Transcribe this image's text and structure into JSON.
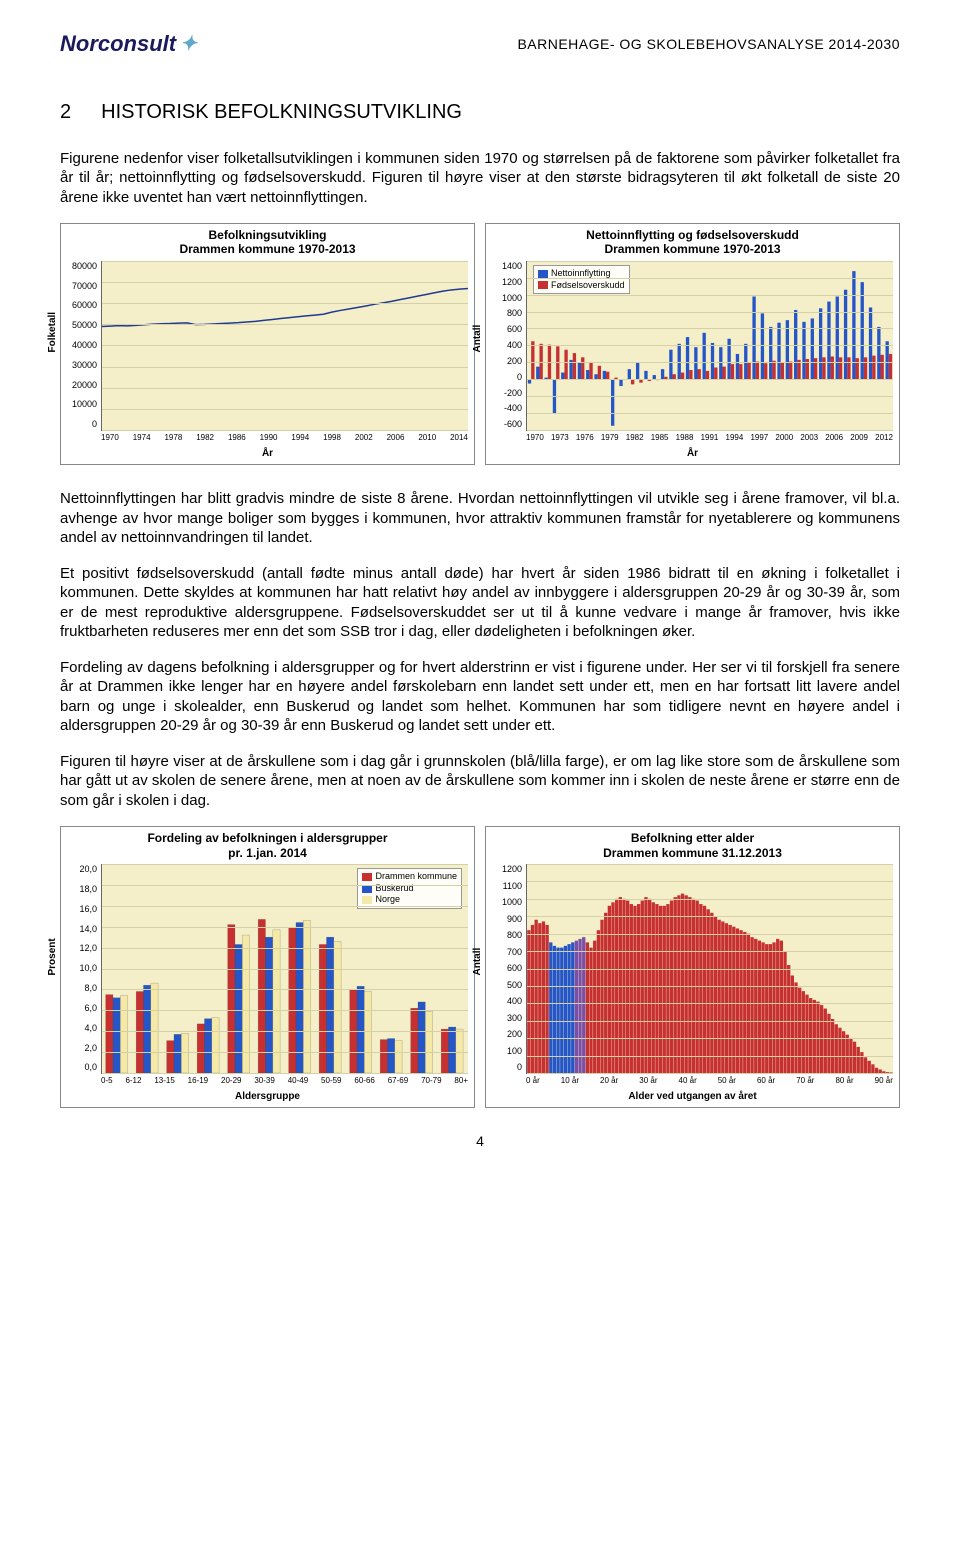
{
  "header": {
    "logo_text": "Norconsult",
    "doc_title": "BARNEHAGE- OG SKOLEBEHOVSANALYSE  2014-2030"
  },
  "section": {
    "number": "2",
    "title": "HISTORISK BEFOLKNINGSUTVIKLING"
  },
  "paragraphs": {
    "p1": "Figurene nedenfor viser folketallsutviklingen i kommunen siden 1970 og størrelsen på de faktorene som påvirker folketallet fra år til år; nettoinnflytting og fødselsoverskudd. Figuren til høyre viser at den største bidragsyteren til økt folketall de siste 20 årene ikke uventet han vært nettoinnflyttingen.",
    "p2": "Nettoinnflyttingen har blitt gradvis mindre de siste 8 årene. Hvordan nettoinnflyttingen vil utvikle seg i årene framover, vil bl.a. avhenge av hvor mange boliger som bygges i kommunen, hvor attraktiv kommunen framstår for nyetablerere og kommunens andel av nettoinnvandringen til landet.",
    "p3": "Et positivt fødselsoverskudd (antall fødte minus antall døde) har hvert år siden 1986 bidratt til en økning i folketallet i kommunen. Dette skyldes at kommunen har hatt relativt høy andel av innbyggere i aldersgruppen 20-29 år og 30-39 år, som er de mest reproduktive aldersgruppene. Fødselsoverskuddet ser ut til å kunne vedvare i mange år framover, hvis ikke fruktbarheten reduseres mer enn det som SSB tror i dag, eller dødeligheten i befolkningen øker.",
    "p4": "Fordeling av dagens befolkning i aldersgrupper og for hvert alderstrinn er vist i figurene under. Her ser vi til forskjell fra senere år at Drammen ikke lenger har en høyere andel førskolebarn enn landet sett under ett, men en har fortsatt litt lavere andel barn og unge i skolealder, enn Buskerud og landet som helhet. Kommunen har som tidligere nevnt en høyere andel i aldersgruppen 20-29 år og 30-39 år enn Buskerud og landet sett under ett.",
    "p5": "Figuren til høyre viser at de årskullene som i dag går i grunnskolen (blå/lilla farge), er om lag like store som de årskullene som har gått ut av skolen de senere årene, men at noen av de årskullene som kommer inn i skolen de neste årene er større enn de som går i skolen i dag."
  },
  "chart1": {
    "type": "line",
    "title": "Befolkningsutvikling\nDrammen kommune 1970-2013",
    "ylabel": "Folketall",
    "xlabel": "År",
    "ylim": [
      0,
      80000
    ],
    "ytick_step": 10000,
    "yticks": [
      "0",
      "10000",
      "20000",
      "30000",
      "40000",
      "50000",
      "60000",
      "70000",
      "80000"
    ],
    "xticks": [
      "1970",
      "1974",
      "1978",
      "1982",
      "1986",
      "1990",
      "1994",
      "1998",
      "2002",
      "2006",
      "2010",
      "2014"
    ],
    "line_color": "#1f3a93",
    "line_width": 1.5,
    "background_color": "#f4efc8",
    "grid_color": "#d4d0a8",
    "data": [
      49000,
      49200,
      49400,
      49300,
      49500,
      49800,
      50100,
      50300,
      50400,
      50600,
      50700,
      49900,
      50000,
      50200,
      50400,
      50600,
      50800,
      51100,
      51400,
      51900,
      52300,
      52800,
      53200,
      53600,
      54000,
      54400,
      54800,
      55800,
      56600,
      57300,
      58000,
      58700,
      59500,
      60200,
      60900,
      61700,
      62500,
      63300,
      64100,
      64900,
      65700,
      66300,
      66700,
      67000
    ]
  },
  "chart2": {
    "type": "bar-dual",
    "title": "Nettoinnflytting og fødselsoverskudd\nDrammen kommune 1970-2013",
    "ylabel": "Antall",
    "xlabel": "År",
    "ylim": [
      -600,
      1400
    ],
    "ytick_step": 200,
    "yticks": [
      "-600",
      "-400",
      "-200",
      "0",
      "200",
      "400",
      "600",
      "800",
      "1000",
      "1200",
      "1400"
    ],
    "xticks": [
      "1970",
      "1973",
      "1976",
      "1979",
      "1982",
      "1985",
      "1988",
      "1991",
      "1994",
      "1997",
      "2000",
      "2003",
      "2006",
      "2009",
      "2012"
    ],
    "legend": [
      {
        "label": "Nettoinnflytting",
        "color": "#2456c7"
      },
      {
        "label": "Fødselsoverskudd",
        "color": "#c73030"
      }
    ],
    "background_color": "#f4efc8",
    "grid_color": "#d4d0a8",
    "netto": [
      -50,
      150,
      20,
      -400,
      80,
      230,
      200,
      110,
      60,
      100,
      -550,
      -80,
      120,
      200,
      100,
      50,
      120,
      350,
      420,
      500,
      380,
      550,
      430,
      380,
      480,
      300,
      420,
      980,
      780,
      620,
      670,
      700,
      820,
      680,
      720,
      840,
      920,
      980,
      1060,
      1280,
      1150,
      850,
      620,
      450
    ],
    "fodsel": [
      450,
      420,
      410,
      390,
      350,
      310,
      260,
      200,
      160,
      90,
      20,
      0,
      -60,
      -40,
      -20,
      -10,
      30,
      60,
      80,
      110,
      120,
      100,
      140,
      150,
      180,
      180,
      200,
      210,
      190,
      220,
      200,
      210,
      230,
      240,
      250,
      260,
      270,
      260,
      260,
      250,
      260,
      280,
      290,
      300
    ]
  },
  "chart3": {
    "type": "grouped-bar",
    "title": "Fordeling av befolkningen i aldersgrupper\npr. 1.jan. 2014",
    "ylabel": "Prosent",
    "xlabel": "Aldersgruppe",
    "ylim": [
      0,
      20
    ],
    "ytick_step": 2,
    "yticks": [
      "0,0",
      "2,0",
      "4,0",
      "6,0",
      "8,0",
      "10,0",
      "12,0",
      "14,0",
      "16,0",
      "18,0",
      "20,0"
    ],
    "categories": [
      "0-5",
      "6-12",
      "13-15",
      "16-19",
      "20-29",
      "30-39",
      "40-49",
      "50-59",
      "60-66",
      "67-69",
      "70-79",
      "80+"
    ],
    "legend": [
      {
        "label": "Drammen kommune",
        "color": "#c73030"
      },
      {
        "label": "Buskerud",
        "color": "#2456c7"
      },
      {
        "label": "Norge",
        "color": "#f5e9a8"
      }
    ],
    "background_color": "#f4efc8",
    "grid_color": "#d4d0a8",
    "series": {
      "drammen": [
        7.5,
        7.8,
        3.1,
        4.7,
        14.2,
        14.7,
        13.9,
        12.3,
        8.0,
        3.2,
        6.2,
        4.2
      ],
      "buskerud": [
        7.2,
        8.4,
        3.7,
        5.2,
        12.3,
        13.0,
        14.4,
        13.0,
        8.3,
        3.3,
        6.8,
        4.4
      ],
      "norge": [
        7.4,
        8.6,
        3.8,
        5.3,
        13.2,
        13.7,
        14.6,
        12.6,
        7.8,
        3.1,
        5.9,
        4.2
      ]
    }
  },
  "chart4": {
    "type": "bar-age-dist",
    "title": "Befolkning etter alder\nDrammen kommune 31.12.2013",
    "ylabel": "Antall",
    "xlabel": "Alder ved utgangen av året",
    "ylim": [
      0,
      1200
    ],
    "ytick_step": 100,
    "yticks": [
      "0",
      "100",
      "200",
      "300",
      "400",
      "500",
      "600",
      "700",
      "800",
      "900",
      "1000",
      "1100",
      "1200"
    ],
    "xticks": [
      "0 år",
      "10 år",
      "20 år",
      "30 år",
      "40 år",
      "50 år",
      "60 år",
      "70 år",
      "80 år",
      "90 år"
    ],
    "background_color": "#f4efc8",
    "grid_color": "#d4d0a8",
    "colors": {
      "preschool": "#c73030",
      "school": "#2456c7",
      "upper": "#7b4fa8",
      "adult": "#c73030"
    },
    "values": [
      820,
      850,
      880,
      860,
      870,
      850,
      750,
      730,
      720,
      720,
      730,
      740,
      750,
      760,
      770,
      780,
      750,
      720,
      760,
      820,
      880,
      920,
      960,
      980,
      1000,
      1010,
      1000,
      990,
      970,
      960,
      970,
      990,
      1010,
      1000,
      980,
      970,
      960,
      960,
      970,
      990,
      1010,
      1020,
      1030,
      1020,
      1010,
      1000,
      990,
      970,
      960,
      940,
      920,
      900,
      880,
      870,
      860,
      850,
      840,
      830,
      820,
      810,
      800,
      780,
      770,
      760,
      750,
      740,
      740,
      750,
      770,
      760,
      700,
      620,
      560,
      520,
      490,
      470,
      450,
      430,
      420,
      410,
      390,
      370,
      340,
      310,
      280,
      260,
      240,
      220,
      200,
      180,
      150,
      120,
      90,
      70,
      50,
      30,
      20,
      10,
      5,
      3
    ]
  },
  "page_number": "4"
}
